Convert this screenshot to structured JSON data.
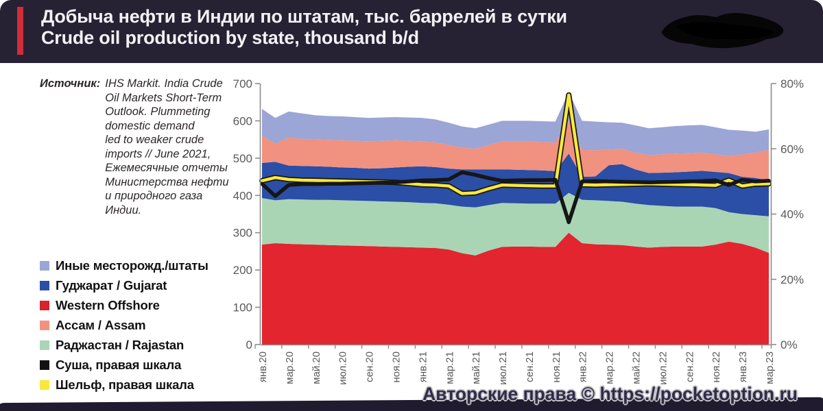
{
  "header": {
    "title_ru": "Добыча нефти в Индии по штатам, тыс. баррелей в сутки",
    "title_en": "Crude oil production by state, thousand b/d",
    "accent_color": "#d12d3a",
    "bg_color": "#272134"
  },
  "source": {
    "label": "Источник:",
    "lines": [
      "IHS Markit. India Crude",
      "Oil Markets Short-Term",
      "Outlook. Plummeting",
      "domestic demand",
      "led to weaker crude",
      "imports // June 2021,",
      "Ежемесячные отчеты",
      "Министерства нефти",
      "и природного газа",
      "Индии."
    ]
  },
  "legend": {
    "items": [
      {
        "label": "Иные месторожд./штаты",
        "color": "#9ba5d6"
      },
      {
        "label": "Гуджарат / Gujarat",
        "color": "#2b4ea6"
      },
      {
        "label": "Western Offshore",
        "color": "#d6232e"
      },
      {
        "label": "Ассам / Assam",
        "color": "#f1917f"
      },
      {
        "label": "Раджастан / Rajastan",
        "color": "#a9d5b5"
      },
      {
        "label": "Суша, правая шкала",
        "color": "#121212"
      },
      {
        "label": "Шельф, правая шкала",
        "color": "#f8e83e"
      }
    ]
  },
  "watermark": {
    "text": "Авторские права © https://pocketoption.ru"
  },
  "chart_data": {
    "type": "area",
    "subtype": "stacked-area with two lines on right axis",
    "title": "Добыча нефти в Индии по штатам, тыс. баррелей в сутки / Crude oil production by state, thousand b/d",
    "x_note": "monthly points Jan 2020 – Mar 2023, tick labels shown every 2nd month",
    "x_tick_labels": [
      "янв.20",
      "мар.20",
      "май.20",
      "июл.20",
      "сен.20",
      "ноя.20",
      "янв.21",
      "мар.21",
      "май.21",
      "июл.21",
      "сен.21",
      "ноя.21",
      "янв.22",
      "мар.22",
      "май.22",
      "июл.22",
      "сен.22",
      "ноя.22",
      "янв.23",
      "мар.23"
    ],
    "left_axis": {
      "min": 0,
      "max": 700,
      "step": 100,
      "labels": [
        "0",
        "100",
        "200",
        "300",
        "400",
        "500",
        "600",
        "700"
      ]
    },
    "right_axis": {
      "min": 0,
      "max": 80,
      "step": 20,
      "labels": [
        "0%",
        "20%",
        "40%",
        "60%",
        "80%"
      ]
    },
    "grid": false,
    "legend_position": "left",
    "series": [
      {
        "key": "western-offshore",
        "name": "Western Offshore",
        "type": "area",
        "axis": "left",
        "color": "#e2252f",
        "values": [
          268,
          272,
          270,
          269,
          268,
          267,
          266,
          265,
          264,
          263,
          262,
          261,
          260,
          259,
          255,
          245,
          239,
          252,
          262,
          263,
          263,
          262,
          262,
          300,
          272,
          269,
          268,
          267,
          263,
          260,
          262,
          263,
          263,
          263,
          268,
          276,
          270,
          260,
          246
        ]
      },
      {
        "key": "rajastan",
        "name": "Раджастан / Rajastan",
        "type": "area",
        "axis": "left",
        "color": "#a9d5b5",
        "values": [
          125,
          115,
          120,
          120,
          120,
          121,
          121,
          121,
          121,
          121,
          121,
          121,
          120,
          120,
          120,
          125,
          129,
          122,
          118,
          116,
          115,
          116,
          116,
          107,
          116,
          118,
          117,
          116,
          115,
          114,
          110,
          107,
          107,
          107,
          98,
          79,
          80,
          87,
          98
        ]
      },
      {
        "key": "gujarat",
        "name": "Гуджарат / Gujarat",
        "type": "area",
        "axis": "left",
        "color": "#2b4ea6",
        "values": [
          94,
          103,
          90,
          90,
          90,
          89,
          88,
          88,
          87,
          89,
          92,
          95,
          98,
          97,
          97,
          100,
          102,
          96,
          90,
          90,
          90,
          89,
          87,
          105,
          62,
          64,
          96,
          101,
          92,
          86,
          89,
          92,
          94,
          96,
          97,
          105,
          100,
          100,
          96
        ]
      },
      {
        "key": "assam",
        "name": "Ассам / Assam",
        "type": "area",
        "axis": "left",
        "color": "#f1917f",
        "values": [
          73,
          49,
          75,
          73,
          72,
          72,
          73,
          72,
          73,
          73,
          73,
          69,
          67,
          66,
          63,
          58,
          55,
          65,
          75,
          76,
          77,
          76,
          77,
          88,
          72,
          70,
          42,
          41,
          45,
          48,
          49,
          50,
          49,
          49,
          47,
          46,
          60,
          68,
          82
        ]
      },
      {
        "key": "other",
        "name": "Иные месторожд./штаты",
        "type": "area",
        "axis": "left",
        "color": "#9ba5d6",
        "values": [
          72,
          69,
          70,
          68,
          65,
          64,
          64,
          64,
          63,
          63,
          62,
          63,
          63,
          62,
          60,
          57,
          55,
          55,
          55,
          55,
          55,
          56,
          56,
          78,
          78,
          77,
          73,
          70,
          73,
          72,
          73,
          74,
          75,
          74,
          73,
          70,
          64,
          56,
          55
        ]
      },
      {
        "key": "shelf",
        "name": "Шельф, правая шкала",
        "type": "line",
        "axis": "right",
        "color": "#f8e83e",
        "outline": "#161616",
        "values": [
          50.2,
          51.2,
          50.6,
          50.4,
          50.3,
          50.2,
          50.1,
          50.0,
          49.9,
          49.8,
          49.7,
          49.4,
          49.0,
          48.9,
          48.6,
          46.3,
          46.5,
          47.8,
          48.9,
          48.8,
          48.7,
          48.6,
          48.6,
          76.5,
          49.0,
          48.9,
          49.0,
          49.1,
          49.2,
          49.3,
          49.2,
          49.1,
          49.0,
          48.9,
          48.8,
          50.4,
          48.6,
          49.2,
          49.3
        ]
      },
      {
        "key": "onshore",
        "name": "Суша, правая шкала",
        "type": "line",
        "axis": "right",
        "color": "#161616",
        "values": [
          49.3,
          45.5,
          48.9,
          49.2,
          49.2,
          49.3,
          49.3,
          49.4,
          49.5,
          49.6,
          49.7,
          50.0,
          50.3,
          50.4,
          50.6,
          52.8,
          52.0,
          51.0,
          50.2,
          50.3,
          50.4,
          50.4,
          50.5,
          37.5,
          50.0,
          50.1,
          50.0,
          49.9,
          49.8,
          49.7,
          49.8,
          49.9,
          50.0,
          50.1,
          50.3,
          48.9,
          50.5,
          50.0,
          50.2
        ]
      }
    ]
  }
}
